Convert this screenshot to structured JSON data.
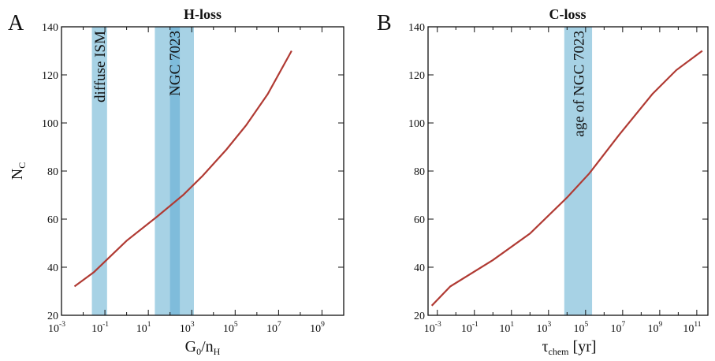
{
  "chart_data": [
    {
      "type": "line",
      "panel_label": "A",
      "title": "H-loss",
      "xlabel": {
        "main": "G",
        "sub1": "0",
        "mid": "/n",
        "sub2": "H"
      },
      "ylabel": {
        "main": "N",
        "sub": "C"
      },
      "x_scale": "log",
      "xlim_exp": [
        -3,
        10
      ],
      "x_tick_exponents": [
        -3,
        -1,
        1,
        3,
        5,
        7,
        9
      ],
      "ylim": [
        20,
        140
      ],
      "y_ticks": [
        20,
        40,
        60,
        80,
        100,
        120,
        140
      ],
      "grid": false,
      "line_color": "#b03a33",
      "series": [
        {
          "x_log10": [
            -2.4,
            -1.5,
            0,
            1.4,
            2.6,
            3.5,
            4.6,
            5.5,
            6.5,
            7.6
          ],
          "values": [
            32,
            38,
            51,
            61,
            70,
            78,
            89,
            99,
            112,
            130
          ]
        }
      ],
      "bands": [
        {
          "x_log10": [
            -1.6,
            -0.9
          ],
          "label": "diffuse ISM",
          "color": "#a7d2e5"
        },
        {
          "x_log10": [
            1.3,
            3.1
          ],
          "label": "NGC 7023",
          "color": "#a7d2e5"
        },
        {
          "x_log10": [
            2.0,
            2.45
          ],
          "label": "",
          "color": "#7fbcdb"
        }
      ]
    },
    {
      "type": "line",
      "panel_label": "B",
      "title": "C-loss",
      "xlabel": {
        "main": "τ",
        "sub1": "chem",
        "mid": " [yr]",
        "sub2": ""
      },
      "ylabel": {
        "main": "",
        "sub": ""
      },
      "x_scale": "log",
      "xlim_exp": [
        -3.5,
        11.6
      ],
      "x_tick_exponents": [
        -3,
        -1,
        1,
        3,
        5,
        7,
        9,
        11
      ],
      "ylim": [
        20,
        140
      ],
      "y_ticks": [
        20,
        40,
        60,
        80,
        100,
        120,
        140
      ],
      "grid": false,
      "line_color": "#b03a33",
      "series": [
        {
          "x_log10": [
            -3.3,
            -2.3,
            0,
            2.0,
            4.0,
            5.2,
            6.8,
            8.6,
            9.9,
            11.3
          ],
          "values": [
            24,
            32,
            43,
            54,
            69,
            79,
            95,
            112,
            122,
            130
          ]
        }
      ],
      "bands": [
        {
          "x_log10": [
            3.85,
            5.35
          ],
          "label": "age of  NGC 7023",
          "color": "#a7d2e5"
        }
      ]
    }
  ]
}
